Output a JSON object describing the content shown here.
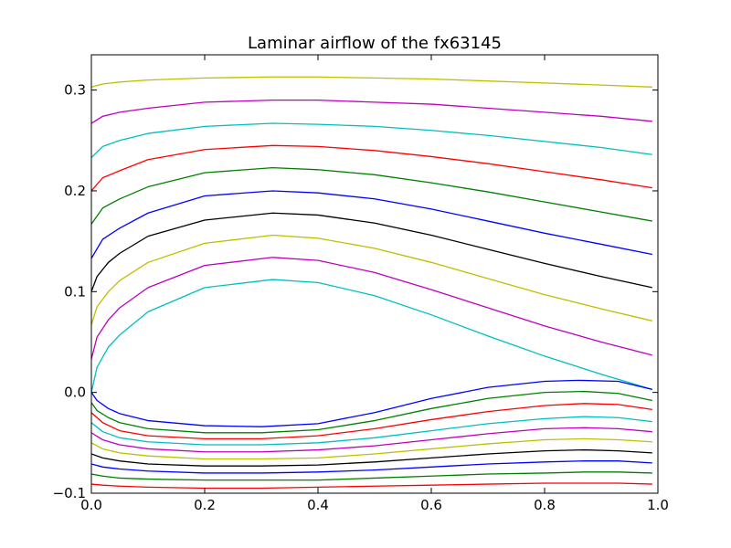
{
  "chart_data": {
    "type": "line",
    "title": "Laminar airflow of the fx63145",
    "xlabel": "",
    "ylabel": "",
    "xlim": [
      0.0,
      1.0
    ],
    "ylim": [
      -0.1,
      0.335
    ],
    "xticks": [
      "0.0",
      "0.2",
      "0.4",
      "0.6",
      "0.8",
      "1.0"
    ],
    "yticks": [
      "−0.1",
      "0.0",
      "0.1",
      "0.2",
      "0.3"
    ],
    "grid": false,
    "legend": "none",
    "lines": [
      {
        "color": "#bfbf00",
        "values": [
          [
            0.0,
            0.303
          ],
          [
            0.02,
            0.306
          ],
          [
            0.05,
            0.308
          ],
          [
            0.1,
            0.31
          ],
          [
            0.2,
            0.312
          ],
          [
            0.32,
            0.313
          ],
          [
            0.4,
            0.313
          ],
          [
            0.5,
            0.312
          ],
          [
            0.6,
            0.311
          ],
          [
            0.7,
            0.309
          ],
          [
            0.8,
            0.307
          ],
          [
            0.9,
            0.305
          ],
          [
            0.99,
            0.303
          ]
        ]
      },
      {
        "color": "#bf00bf",
        "values": [
          [
            0.0,
            0.267
          ],
          [
            0.02,
            0.274
          ],
          [
            0.05,
            0.278
          ],
          [
            0.1,
            0.282
          ],
          [
            0.2,
            0.288
          ],
          [
            0.32,
            0.29
          ],
          [
            0.4,
            0.29
          ],
          [
            0.5,
            0.288
          ],
          [
            0.6,
            0.286
          ],
          [
            0.7,
            0.282
          ],
          [
            0.8,
            0.278
          ],
          [
            0.9,
            0.274
          ],
          [
            0.99,
            0.269
          ]
        ]
      },
      {
        "color": "#00bfbf",
        "values": [
          [
            0.0,
            0.233
          ],
          [
            0.02,
            0.244
          ],
          [
            0.05,
            0.25
          ],
          [
            0.1,
            0.257
          ],
          [
            0.2,
            0.264
          ],
          [
            0.32,
            0.267
          ],
          [
            0.4,
            0.266
          ],
          [
            0.5,
            0.264
          ],
          [
            0.6,
            0.26
          ],
          [
            0.7,
            0.255
          ],
          [
            0.8,
            0.249
          ],
          [
            0.9,
            0.243
          ],
          [
            0.99,
            0.236
          ]
        ]
      },
      {
        "color": "#ff0000",
        "values": [
          [
            0.0,
            0.2
          ],
          [
            0.02,
            0.213
          ],
          [
            0.05,
            0.22
          ],
          [
            0.1,
            0.231
          ],
          [
            0.2,
            0.241
          ],
          [
            0.32,
            0.245
          ],
          [
            0.4,
            0.244
          ],
          [
            0.5,
            0.24
          ],
          [
            0.6,
            0.234
          ],
          [
            0.7,
            0.227
          ],
          [
            0.8,
            0.219
          ],
          [
            0.9,
            0.211
          ],
          [
            0.99,
            0.203
          ]
        ]
      },
      {
        "color": "#008000",
        "values": [
          [
            0.0,
            0.167
          ],
          [
            0.02,
            0.183
          ],
          [
            0.05,
            0.192
          ],
          [
            0.1,
            0.204
          ],
          [
            0.2,
            0.218
          ],
          [
            0.32,
            0.223
          ],
          [
            0.4,
            0.221
          ],
          [
            0.5,
            0.216
          ],
          [
            0.6,
            0.208
          ],
          [
            0.7,
            0.199
          ],
          [
            0.8,
            0.189
          ],
          [
            0.9,
            0.179
          ],
          [
            0.99,
            0.17
          ]
        ]
      },
      {
        "color": "#0000ff",
        "values": [
          [
            0.0,
            0.133
          ],
          [
            0.02,
            0.152
          ],
          [
            0.05,
            0.163
          ],
          [
            0.1,
            0.178
          ],
          [
            0.2,
            0.195
          ],
          [
            0.32,
            0.2
          ],
          [
            0.4,
            0.198
          ],
          [
            0.5,
            0.192
          ],
          [
            0.6,
            0.182
          ],
          [
            0.7,
            0.17
          ],
          [
            0.8,
            0.158
          ],
          [
            0.9,
            0.147
          ],
          [
            0.99,
            0.137
          ]
        ]
      },
      {
        "color": "#000000",
        "values": [
          [
            0.0,
            0.1
          ],
          [
            0.01,
            0.115
          ],
          [
            0.03,
            0.129
          ],
          [
            0.05,
            0.138
          ],
          [
            0.1,
            0.155
          ],
          [
            0.2,
            0.171
          ],
          [
            0.32,
            0.178
          ],
          [
            0.4,
            0.176
          ],
          [
            0.5,
            0.168
          ],
          [
            0.6,
            0.156
          ],
          [
            0.7,
            0.142
          ],
          [
            0.8,
            0.128
          ],
          [
            0.9,
            0.115
          ],
          [
            0.99,
            0.104
          ]
        ]
      },
      {
        "color": "#bfbf00",
        "values": [
          [
            0.0,
            0.067
          ],
          [
            0.01,
            0.085
          ],
          [
            0.03,
            0.1
          ],
          [
            0.05,
            0.111
          ],
          [
            0.1,
            0.129
          ],
          [
            0.2,
            0.148
          ],
          [
            0.32,
            0.156
          ],
          [
            0.4,
            0.153
          ],
          [
            0.5,
            0.143
          ],
          [
            0.6,
            0.129
          ],
          [
            0.7,
            0.113
          ],
          [
            0.8,
            0.097
          ],
          [
            0.9,
            0.083
          ],
          [
            0.99,
            0.071
          ]
        ]
      },
      {
        "color": "#bf00bf",
        "values": [
          [
            0.0,
            0.033
          ],
          [
            0.01,
            0.055
          ],
          [
            0.03,
            0.072
          ],
          [
            0.05,
            0.084
          ],
          [
            0.1,
            0.104
          ],
          [
            0.2,
            0.126
          ],
          [
            0.32,
            0.134
          ],
          [
            0.4,
            0.131
          ],
          [
            0.5,
            0.119
          ],
          [
            0.6,
            0.102
          ],
          [
            0.7,
            0.084
          ],
          [
            0.8,
            0.066
          ],
          [
            0.9,
            0.05
          ],
          [
            0.99,
            0.037
          ]
        ]
      },
      {
        "color": "#00bfbf",
        "values": [
          [
            0.0,
            0.0
          ],
          [
            0.01,
            0.025
          ],
          [
            0.03,
            0.045
          ],
          [
            0.05,
            0.057
          ],
          [
            0.1,
            0.08
          ],
          [
            0.2,
            0.104
          ],
          [
            0.32,
            0.112
          ],
          [
            0.4,
            0.109
          ],
          [
            0.5,
            0.096
          ],
          [
            0.6,
            0.077
          ],
          [
            0.7,
            0.056
          ],
          [
            0.8,
            0.036
          ],
          [
            0.9,
            0.018
          ],
          [
            0.99,
            0.003
          ]
        ]
      },
      {
        "color": "#0000ff",
        "values": [
          [
            0.0,
            0.0
          ],
          [
            0.01,
            -0.008
          ],
          [
            0.03,
            -0.016
          ],
          [
            0.05,
            -0.021
          ],
          [
            0.1,
            -0.028
          ],
          [
            0.2,
            -0.033
          ],
          [
            0.3,
            -0.034
          ],
          [
            0.4,
            -0.031
          ],
          [
            0.5,
            -0.02
          ],
          [
            0.6,
            -0.006
          ],
          [
            0.7,
            0.005
          ],
          [
            0.8,
            0.011
          ],
          [
            0.86,
            0.012
          ],
          [
            0.93,
            0.011
          ],
          [
            0.99,
            0.003
          ]
        ]
      },
      {
        "color": "#008000",
        "values": [
          [
            0.0,
            -0.01
          ],
          [
            0.01,
            -0.018
          ],
          [
            0.03,
            -0.025
          ],
          [
            0.05,
            -0.03
          ],
          [
            0.1,
            -0.036
          ],
          [
            0.2,
            -0.04
          ],
          [
            0.3,
            -0.04
          ],
          [
            0.4,
            -0.037
          ],
          [
            0.5,
            -0.028
          ],
          [
            0.6,
            -0.016
          ],
          [
            0.7,
            -0.006
          ],
          [
            0.8,
            0.0
          ],
          [
            0.87,
            0.001
          ],
          [
            0.93,
            -0.001
          ],
          [
            0.99,
            -0.008
          ]
        ]
      },
      {
        "color": "#ff0000",
        "values": [
          [
            0.0,
            -0.02
          ],
          [
            0.02,
            -0.03
          ],
          [
            0.05,
            -0.038
          ],
          [
            0.1,
            -0.043
          ],
          [
            0.2,
            -0.046
          ],
          [
            0.3,
            -0.046
          ],
          [
            0.4,
            -0.043
          ],
          [
            0.5,
            -0.036
          ],
          [
            0.6,
            -0.027
          ],
          [
            0.7,
            -0.019
          ],
          [
            0.8,
            -0.013
          ],
          [
            0.87,
            -0.011
          ],
          [
            0.93,
            -0.012
          ],
          [
            0.99,
            -0.017
          ]
        ]
      },
      {
        "color": "#00bfbf",
        "values": [
          [
            0.0,
            -0.03
          ],
          [
            0.02,
            -0.039
          ],
          [
            0.05,
            -0.045
          ],
          [
            0.1,
            -0.049
          ],
          [
            0.2,
            -0.052
          ],
          [
            0.3,
            -0.052
          ],
          [
            0.4,
            -0.05
          ],
          [
            0.5,
            -0.045
          ],
          [
            0.6,
            -0.038
          ],
          [
            0.7,
            -0.031
          ],
          [
            0.8,
            -0.026
          ],
          [
            0.87,
            -0.024
          ],
          [
            0.93,
            -0.025
          ],
          [
            0.99,
            -0.029
          ]
        ]
      },
      {
        "color": "#bf00bf",
        "values": [
          [
            0.0,
            -0.04
          ],
          [
            0.02,
            -0.047
          ],
          [
            0.05,
            -0.052
          ],
          [
            0.1,
            -0.056
          ],
          [
            0.2,
            -0.059
          ],
          [
            0.3,
            -0.059
          ],
          [
            0.4,
            -0.057
          ],
          [
            0.5,
            -0.053
          ],
          [
            0.6,
            -0.047
          ],
          [
            0.7,
            -0.041
          ],
          [
            0.8,
            -0.036
          ],
          [
            0.87,
            -0.035
          ],
          [
            0.93,
            -0.036
          ],
          [
            0.99,
            -0.039
          ]
        ]
      },
      {
        "color": "#bfbf00",
        "values": [
          [
            0.0,
            -0.05
          ],
          [
            0.02,
            -0.056
          ],
          [
            0.05,
            -0.06
          ],
          [
            0.1,
            -0.063
          ],
          [
            0.2,
            -0.066
          ],
          [
            0.3,
            -0.066
          ],
          [
            0.4,
            -0.065
          ],
          [
            0.5,
            -0.061
          ],
          [
            0.6,
            -0.056
          ],
          [
            0.7,
            -0.051
          ],
          [
            0.8,
            -0.047
          ],
          [
            0.87,
            -0.046
          ],
          [
            0.93,
            -0.047
          ],
          [
            0.99,
            -0.049
          ]
        ]
      },
      {
        "color": "#000000",
        "values": [
          [
            0.0,
            -0.061
          ],
          [
            0.02,
            -0.065
          ],
          [
            0.05,
            -0.068
          ],
          [
            0.1,
            -0.071
          ],
          [
            0.2,
            -0.073
          ],
          [
            0.3,
            -0.073
          ],
          [
            0.4,
            -0.072
          ],
          [
            0.5,
            -0.069
          ],
          [
            0.6,
            -0.065
          ],
          [
            0.7,
            -0.061
          ],
          [
            0.8,
            -0.058
          ],
          [
            0.87,
            -0.057
          ],
          [
            0.93,
            -0.058
          ],
          [
            0.99,
            -0.06
          ]
        ]
      },
      {
        "color": "#0000ff",
        "values": [
          [
            0.0,
            -0.071
          ],
          [
            0.02,
            -0.074
          ],
          [
            0.05,
            -0.076
          ],
          [
            0.1,
            -0.078
          ],
          [
            0.2,
            -0.08
          ],
          [
            0.3,
            -0.08
          ],
          [
            0.4,
            -0.079
          ],
          [
            0.5,
            -0.077
          ],
          [
            0.6,
            -0.074
          ],
          [
            0.7,
            -0.071
          ],
          [
            0.8,
            -0.069
          ],
          [
            0.87,
            -0.068
          ],
          [
            0.93,
            -0.068
          ],
          [
            0.99,
            -0.07
          ]
        ]
      },
      {
        "color": "#008000",
        "values": [
          [
            0.0,
            -0.081
          ],
          [
            0.02,
            -0.083
          ],
          [
            0.05,
            -0.085
          ],
          [
            0.1,
            -0.086
          ],
          [
            0.2,
            -0.087
          ],
          [
            0.3,
            -0.087
          ],
          [
            0.4,
            -0.087
          ],
          [
            0.5,
            -0.085
          ],
          [
            0.6,
            -0.083
          ],
          [
            0.7,
            -0.081
          ],
          [
            0.8,
            -0.08
          ],
          [
            0.87,
            -0.079
          ],
          [
            0.93,
            -0.079
          ],
          [
            0.99,
            -0.08
          ]
        ]
      },
      {
        "color": "#ff0000",
        "values": [
          [
            0.0,
            -0.091
          ],
          [
            0.02,
            -0.092
          ],
          [
            0.05,
            -0.093
          ],
          [
            0.1,
            -0.094
          ],
          [
            0.2,
            -0.095
          ],
          [
            0.3,
            -0.095
          ],
          [
            0.4,
            -0.094
          ],
          [
            0.5,
            -0.093
          ],
          [
            0.6,
            -0.092
          ],
          [
            0.7,
            -0.091
          ],
          [
            0.8,
            -0.09
          ],
          [
            0.87,
            -0.09
          ],
          [
            0.93,
            -0.09
          ],
          [
            0.99,
            -0.091
          ]
        ]
      }
    ]
  }
}
